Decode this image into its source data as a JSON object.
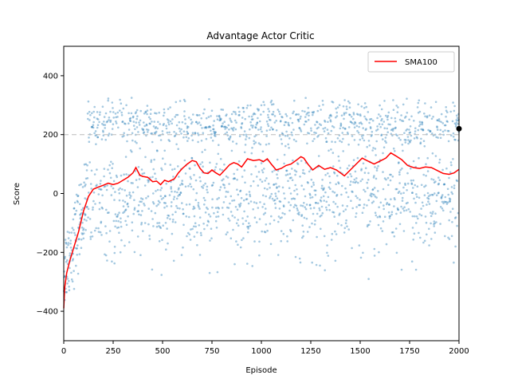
{
  "chart_data": {
    "type": "scatter",
    "title": "Advantage Actor Critic",
    "xlabel": "Episode",
    "ylabel": "Score",
    "xlim": [
      0,
      2000
    ],
    "ylim": [
      -500,
      500
    ],
    "x_ticks": [
      "0",
      "250",
      "500",
      "750",
      "1000",
      "1250",
      "1500",
      "1750",
      "2000"
    ],
    "y_ticks": [
      "−400",
      "−200",
      "0",
      "200",
      "400"
    ],
    "y_tick_values": [
      -400,
      -200,
      0,
      200,
      400
    ],
    "x_tick_values": [
      0,
      250,
      500,
      750,
      1000,
      1250,
      1500,
      1750,
      2000
    ],
    "reference_line": {
      "y": 200,
      "style": "dashed",
      "color": "#bbbbbb"
    },
    "legend": {
      "position": "top-right",
      "entries": [
        "SMA100"
      ]
    },
    "series": [
      {
        "name": "SMA100",
        "kind": "line",
        "color": "#ff0000",
        "points": [
          [
            0,
            -390
          ],
          [
            5,
            -320
          ],
          [
            15,
            -270
          ],
          [
            30,
            -230
          ],
          [
            50,
            -185
          ],
          [
            75,
            -130
          ],
          [
            100,
            -60
          ],
          [
            125,
            -10
          ],
          [
            150,
            15
          ],
          [
            175,
            22
          ],
          [
            200,
            28
          ],
          [
            225,
            35
          ],
          [
            250,
            30
          ],
          [
            275,
            35
          ],
          [
            300,
            45
          ],
          [
            325,
            55
          ],
          [
            350,
            70
          ],
          [
            365,
            88
          ],
          [
            385,
            62
          ],
          [
            400,
            58
          ],
          [
            425,
            55
          ],
          [
            450,
            40
          ],
          [
            470,
            42
          ],
          [
            490,
            30
          ],
          [
            510,
            45
          ],
          [
            530,
            40
          ],
          [
            560,
            50
          ],
          [
            580,
            70
          ],
          [
            600,
            85
          ],
          [
            625,
            100
          ],
          [
            650,
            112
          ],
          [
            670,
            108
          ],
          [
            690,
            85
          ],
          [
            710,
            70
          ],
          [
            730,
            68
          ],
          [
            750,
            80
          ],
          [
            770,
            70
          ],
          [
            790,
            62
          ],
          [
            815,
            80
          ],
          [
            840,
            98
          ],
          [
            860,
            105
          ],
          [
            880,
            100
          ],
          [
            900,
            90
          ],
          [
            930,
            118
          ],
          [
            960,
            112
          ],
          [
            990,
            115
          ],
          [
            1010,
            108
          ],
          [
            1030,
            118
          ],
          [
            1050,
            100
          ],
          [
            1075,
            80
          ],
          [
            1100,
            85
          ],
          [
            1125,
            95
          ],
          [
            1150,
            100
          ],
          [
            1175,
            112
          ],
          [
            1200,
            125
          ],
          [
            1215,
            120
          ],
          [
            1235,
            100
          ],
          [
            1260,
            80
          ],
          [
            1290,
            95
          ],
          [
            1320,
            82
          ],
          [
            1350,
            88
          ],
          [
            1380,
            80
          ],
          [
            1400,
            70
          ],
          [
            1420,
            60
          ],
          [
            1450,
            80
          ],
          [
            1480,
            100
          ],
          [
            1510,
            120
          ],
          [
            1540,
            110
          ],
          [
            1570,
            100
          ],
          [
            1600,
            110
          ],
          [
            1630,
            120
          ],
          [
            1655,
            138
          ],
          [
            1680,
            128
          ],
          [
            1710,
            115
          ],
          [
            1740,
            95
          ],
          [
            1770,
            88
          ],
          [
            1800,
            85
          ],
          [
            1830,
            90
          ],
          [
            1860,
            88
          ],
          [
            1890,
            78
          ],
          [
            1920,
            68
          ],
          [
            1950,
            65
          ],
          [
            1975,
            70
          ],
          [
            2000,
            82
          ]
        ]
      },
      {
        "name": "",
        "kind": "scatter",
        "color": "#1f77b4",
        "opacity": 0.4,
        "count": 2000,
        "x_range": [
          0,
          2000
        ],
        "y_range": [
          -370,
          330
        ],
        "description_of_distribution": "bimodal clusters near -20 and +240"
      }
    ],
    "marker": {
      "x": 2000,
      "y": 220,
      "color": "#000000"
    }
  }
}
